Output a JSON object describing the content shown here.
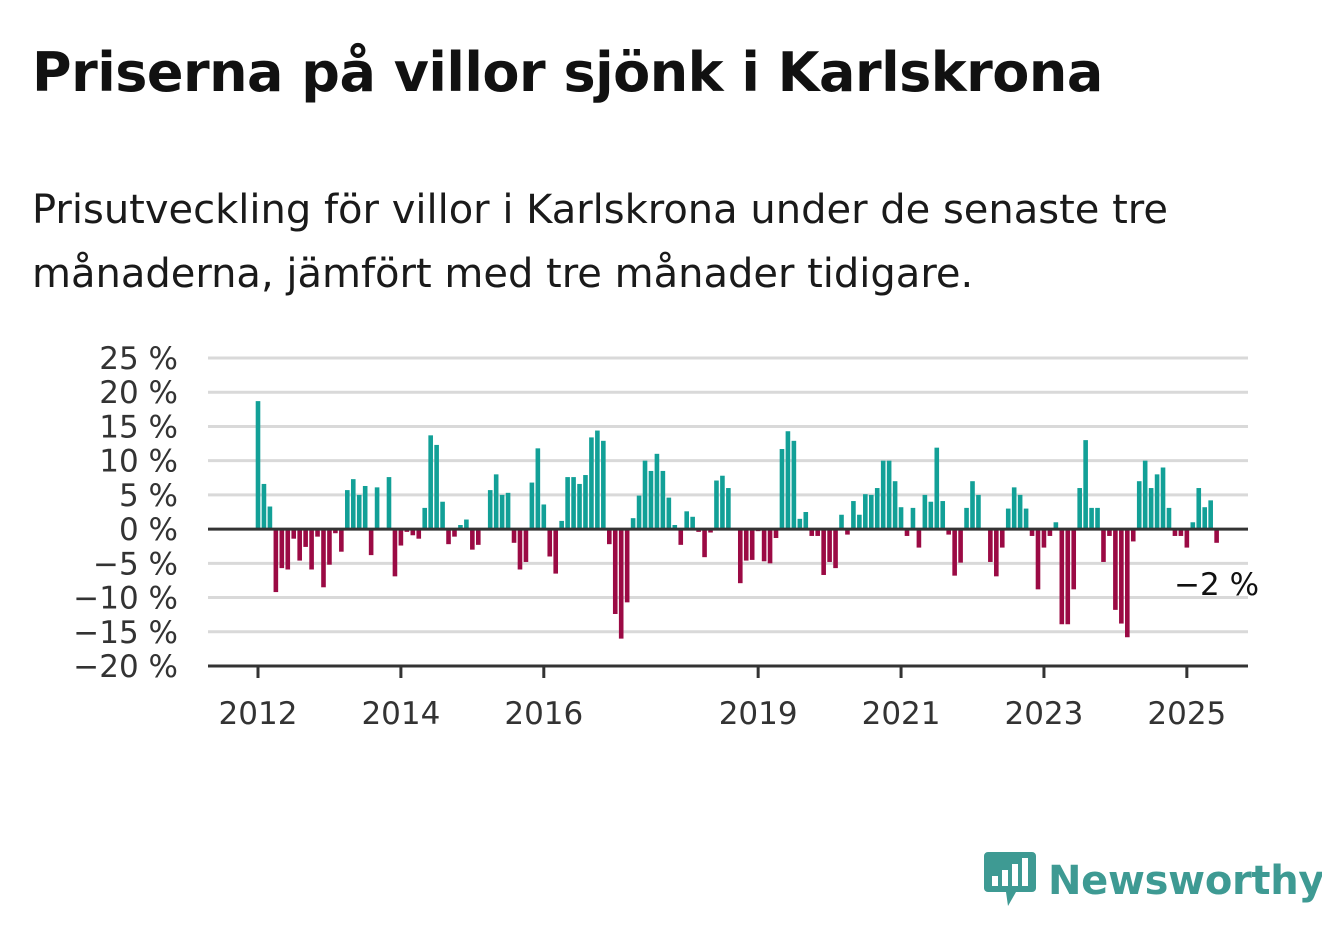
{
  "header": {
    "title": "Priserna på villor sjönk i Karlskrona",
    "subtitle": "Prisutveckling för villor i Karlskrona under de senaste tre månaderna, jämfört med tre månader tidigare."
  },
  "brand": {
    "name": "Newsworthy",
    "icon": "newsworthy-chart-bubble-icon",
    "color": "#3e9a93"
  },
  "colors": {
    "positive": "#12a097",
    "negative": "#9b0a44",
    "grid": "#d9d9d9",
    "axis": "#333333"
  },
  "chart_data": {
    "type": "bar",
    "title": "Priserna på villor sjönk i Karlskrona",
    "subtitle": "Prisutveckling för villor i Karlskrona under de senaste tre månaderna, jämfört med tre månader tidigare.",
    "ylim": [
      -20,
      25
    ],
    "yticks": [
      25,
      20,
      15,
      10,
      5,
      0,
      -5,
      -10,
      -15,
      -20
    ],
    "ytick_labels": [
      "25 %",
      "20 %",
      "15 %",
      "10 %",
      "5 %",
      "0 %",
      "−5 %",
      "−10 %",
      "−15 %",
      "−20 %"
    ],
    "xticks": [
      {
        "label": "2012",
        "year": 2012
      },
      {
        "label": "2014",
        "year": 2014
      },
      {
        "label": "2016",
        "year": 2016
      },
      {
        "label": "2019",
        "year": 2019
      },
      {
        "label": "2021",
        "year": 2021
      },
      {
        "label": "2023",
        "year": 2023
      },
      {
        "label": "2025",
        "year": 2025
      }
    ],
    "grid": true,
    "start": "2012-01",
    "frequency": "monthly",
    "values": [
      18.7,
      6.6,
      3.3,
      -9.2,
      -5.7,
      -5.9,
      -1.4,
      -4.6,
      -2.6,
      -5.9,
      -1.1,
      -8.5,
      -5.2,
      -0.6,
      -3.3,
      5.7,
      7.3,
      5.0,
      6.3,
      -3.8,
      6.1,
      0.2,
      7.6,
      -6.9,
      -2.4,
      -0.4,
      -0.9,
      -1.4,
      3.1,
      13.7,
      12.3,
      4.0,
      -2.2,
      -1.1,
      0.6,
      1.4,
      -3.0,
      -2.3,
      0.1,
      5.7,
      8.0,
      5.0,
      5.3,
      -2.0,
      -5.9,
      -4.8,
      6.8,
      11.8,
      3.6,
      -4.0,
      -6.5,
      1.2,
      7.6,
      7.6,
      6.6,
      7.9,
      13.4,
      14.4,
      12.9,
      -2.2,
      -12.4,
      -16.0,
      -10.7,
      1.6,
      4.9,
      10.0,
      8.5,
      11.0,
      8.5,
      4.6,
      0.6,
      -2.3,
      2.6,
      1.8,
      -0.4,
      -4.1,
      -0.5,
      7.1,
      7.8,
      6.0,
      0.1,
      -7.9,
      -4.6,
      -4.5,
      -0.3,
      -4.7,
      -5.0,
      -1.3,
      11.7,
      14.3,
      12.9,
      1.5,
      2.5,
      -1.0,
      -1.0,
      -6.7,
      -4.8,
      -5.7,
      2.1,
      -0.8,
      4.1,
      2.1,
      5.1,
      5.0,
      6.0,
      10.0,
      10.0,
      7.0,
      3.2,
      -1.0,
      3.1,
      -2.7,
      5.0,
      4.0,
      11.9,
      4.1,
      -0.8,
      -6.8,
      -4.9,
      3.1,
      7.0,
      5.0,
      0.1,
      -4.8,
      -6.9,
      -2.7,
      3.0,
      6.1,
      5.0,
      3.0,
      -1.0,
      -8.8,
      -2.7,
      -1.0,
      1.0,
      -13.9,
      -13.9,
      -8.8,
      6.0,
      13.0,
      3.1,
      3.1,
      -4.8,
      -1.0,
      -11.8,
      -13.8,
      -15.8,
      -1.8,
      7.0,
      10.0,
      6.0,
      8.0,
      9.0,
      3.1,
      -1.0,
      -1.0,
      -2.7,
      1.0,
      6.0,
      3.2,
      4.2,
      -2.0
    ],
    "annotation": {
      "text": "−2 %",
      "value": -2
    }
  }
}
